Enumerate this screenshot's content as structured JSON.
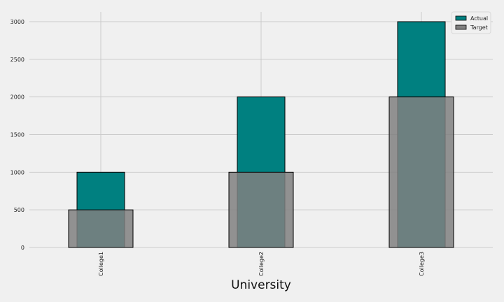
{
  "chart_data": {
    "type": "bar",
    "title": "",
    "xlabel": "University",
    "ylabel": "",
    "categories": [
      "College1",
      "College2",
      "College3"
    ],
    "series": [
      {
        "name": "Actual",
        "values": [
          1000,
          2000,
          3000
        ],
        "color": "#008080"
      },
      {
        "name": "Target",
        "values": [
          500,
          1000,
          2000
        ],
        "color": "#808080"
      }
    ],
    "ylim": [
      0,
      3130
    ],
    "yticks": [
      0,
      500,
      1000,
      1500,
      2000,
      2500,
      3000
    ],
    "grid": true,
    "legend_position": "top-right"
  }
}
